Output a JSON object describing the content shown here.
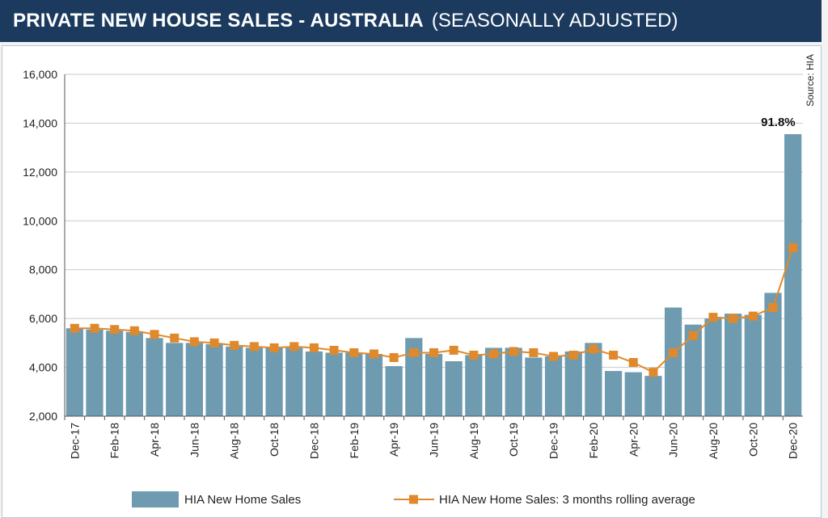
{
  "header": {
    "title": "PRIVATE NEW HOUSE SALES -  AUSTRALIA",
    "subtitle": "(SEASONALLY ADJUSTED)"
  },
  "colors": {
    "header_bg": "#1b3a5e",
    "bar": "#6e9bb0",
    "line": "#e0892c"
  },
  "chart_data": {
    "type": "bar",
    "ylim": [
      2000,
      16000
    ],
    "yticks": [
      2000,
      4000,
      6000,
      8000,
      10000,
      12000,
      14000,
      16000
    ],
    "ytick_labels": [
      "2,000",
      "4,000",
      "6,000",
      "8,000",
      "10,000",
      "12,000",
      "14,000",
      "16,000"
    ],
    "grid": true,
    "legend_position": "bottom",
    "categories": [
      "Dec-17",
      "Jan-18",
      "Feb-18",
      "Mar-18",
      "Apr-18",
      "May-18",
      "Jun-18",
      "Jul-18",
      "Aug-18",
      "Sep-18",
      "Oct-18",
      "Nov-18",
      "Dec-18",
      "Jan-19",
      "Feb-19",
      "Mar-19",
      "Apr-19",
      "May-19",
      "Jun-19",
      "Jul-19",
      "Aug-19",
      "Sep-19",
      "Oct-19",
      "Nov-19",
      "Dec-19",
      "Jan-20",
      "Feb-20",
      "Mar-20",
      "Apr-20",
      "May-20",
      "Jun-20",
      "Jul-20",
      "Aug-20",
      "Sep-20",
      "Oct-20",
      "Nov-20",
      "Dec-20"
    ],
    "xtick_labels": [
      "Dec-17",
      "Feb-18",
      "Apr-18",
      "Jun-18",
      "Aug-18",
      "Oct-18",
      "Dec-18",
      "Feb-19",
      "Apr-19",
      "Jun-19",
      "Aug-19",
      "Oct-19",
      "Dec-19",
      "Feb-20",
      "Apr-20",
      "Jun-20",
      "Aug-20",
      "Oct-20",
      "Dec-20"
    ],
    "series": [
      {
        "name": "HIA New Home Sales",
        "type": "bar",
        "values": [
          5600,
          5550,
          5500,
          5450,
          5200,
          5000,
          5000,
          4950,
          4850,
          4800,
          4800,
          4800,
          4650,
          4600,
          4600,
          4550,
          4050,
          5200,
          4550,
          4250,
          4500,
          4800,
          4800,
          4400,
          4450,
          4650,
          5000,
          3850,
          3800,
          3650,
          6450,
          5750,
          6000,
          6200,
          6150,
          7050,
          13550
        ]
      },
      {
        "name": "HIA New Home Sales: 3 months rolling average",
        "type": "line",
        "values": [
          5600,
          5600,
          5550,
          5500,
          5350,
          5200,
          5050,
          5000,
          4900,
          4850,
          4800,
          4850,
          4800,
          4700,
          4600,
          4550,
          4400,
          4600,
          4600,
          4700,
          4500,
          4550,
          4650,
          4600,
          4450,
          4500,
          4750,
          4500,
          4200,
          3800,
          4600,
          5300,
          6050,
          6000,
          6100,
          6450,
          8900
        ]
      }
    ],
    "annotations": [
      {
        "text": "91.8%",
        "category": "Dec-20"
      },
      {
        "text": "Source: HIA"
      }
    ]
  }
}
